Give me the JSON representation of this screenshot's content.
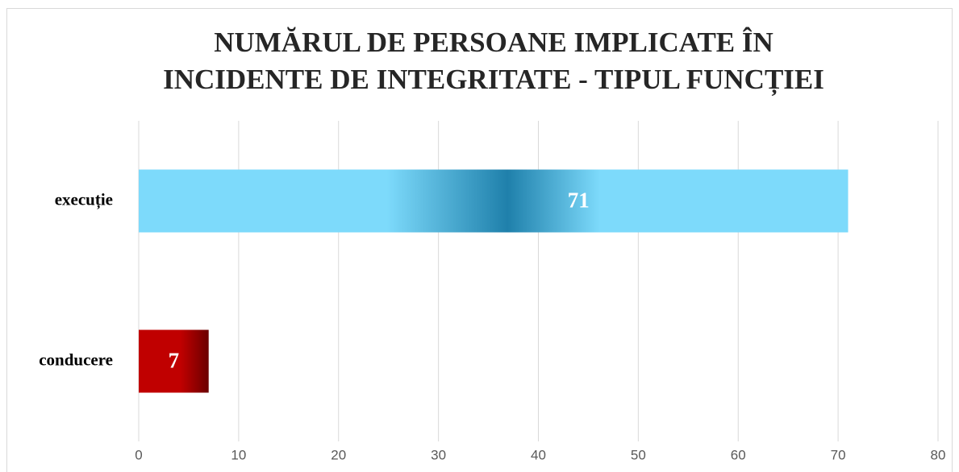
{
  "chart_data": {
    "type": "bar",
    "orientation": "horizontal",
    "title": [
      "NUMĂRUL DE PERSOANE IMPLICATE ÎN",
      "INCIDENTE DE INTEGRITATE - TIPUL FUNCȚIEI"
    ],
    "categories": [
      "execuție",
      "conducere"
    ],
    "values": [
      71,
      7
    ],
    "colors": [
      "#7ddafb",
      "#c00000"
    ],
    "xlim": [
      0,
      80
    ],
    "xticks": [
      0,
      10,
      20,
      30,
      40,
      50,
      60,
      70,
      80
    ],
    "grid": true
  }
}
